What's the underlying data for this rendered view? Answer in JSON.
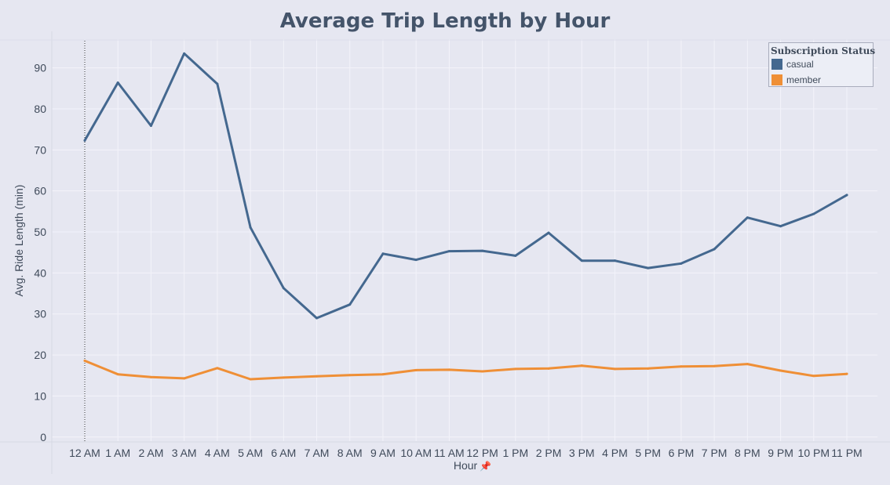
{
  "chart_data": {
    "type": "line",
    "title": "Average Trip Length by Hour",
    "xlabel": "Hour",
    "ylabel": "Avg. Ride Length (min)",
    "categories": [
      "12 AM",
      "1 AM",
      "2 AM",
      "3 AM",
      "4 AM",
      "5 AM",
      "6 AM",
      "7 AM",
      "8 AM",
      "9 AM",
      "10 AM",
      "11 AM",
      "12 PM",
      "1 PM",
      "2 PM",
      "3 PM",
      "4 PM",
      "5 PM",
      "6 PM",
      "7 PM",
      "8 PM",
      "9 PM",
      "10 PM",
      "11 PM"
    ],
    "yticks": [
      0,
      10,
      20,
      30,
      40,
      50,
      60,
      70,
      80,
      90
    ],
    "ylim": [
      -1,
      97
    ],
    "grid": true,
    "legend": {
      "title": "Subscription Status",
      "placement": "top-right"
    },
    "series": [
      {
        "name": "casual",
        "color": "#44688f",
        "values": [
          72.3,
          86.4,
          75.9,
          93.5,
          86.1,
          51.1,
          36.3,
          29.0,
          32.3,
          44.7,
          43.2,
          45.3,
          45.4,
          44.2,
          49.8,
          43.0,
          43.0,
          41.2,
          42.3,
          45.8,
          53.5,
          51.4,
          54.4,
          59.0
        ]
      },
      {
        "name": "member",
        "color": "#ef8f36",
        "values": [
          18.6,
          15.3,
          14.6,
          14.3,
          16.8,
          14.1,
          14.5,
          14.8,
          15.1,
          15.3,
          16.3,
          16.4,
          16.0,
          16.6,
          16.7,
          17.4,
          16.6,
          16.7,
          17.2,
          17.3,
          17.8,
          16.2,
          14.9,
          15.4
        ]
      }
    ]
  },
  "axis_icon": "pin-icon",
  "axis_icon_glyph": "📌",
  "colors": {
    "background": "#e6e7f1",
    "text": "#3f4a5a",
    "title": "#44546a"
  }
}
